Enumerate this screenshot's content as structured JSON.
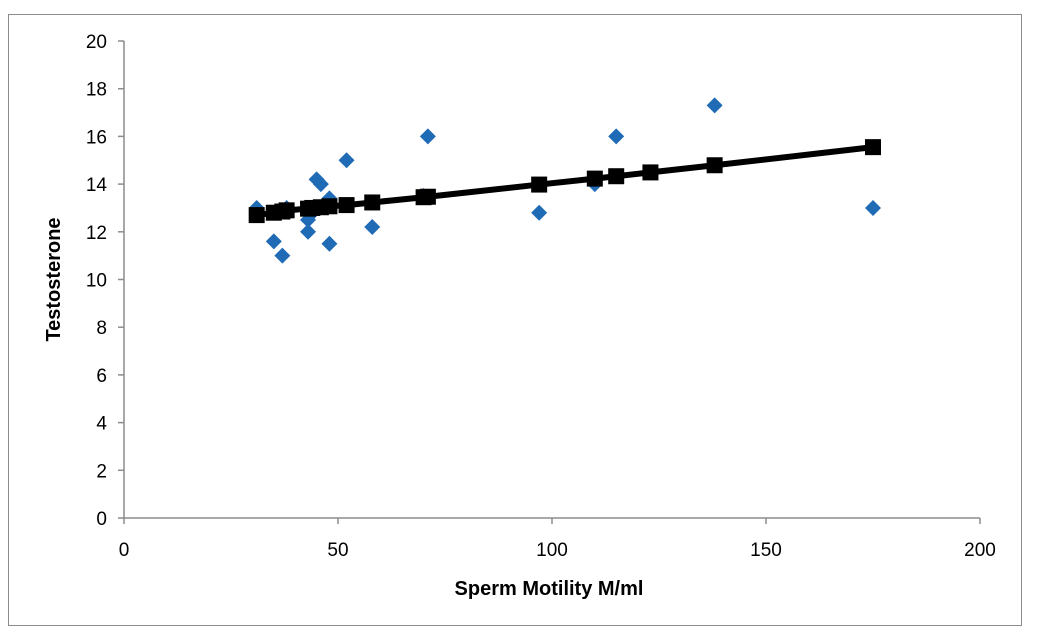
{
  "chart_data": {
    "type": "scatter",
    "title": "",
    "xlabel": "Sperm Motility M/ml",
    "ylabel": "Testosterone",
    "xlim": [
      0,
      200
    ],
    "ylim": [
      0,
      20
    ],
    "x_ticks": [
      0,
      50,
      100,
      150,
      200
    ],
    "y_ticks": [
      0,
      2,
      4,
      6,
      8,
      10,
      12,
      14,
      16,
      18,
      20
    ],
    "grid": false,
    "legend": "none",
    "series": [
      {
        "marker": "diamond",
        "color": "#1f6bb5",
        "points": [
          [
            31,
            13.0
          ],
          [
            35,
            11.6
          ],
          [
            37,
            11.0
          ],
          [
            38,
            13.0
          ],
          [
            43,
            12.0
          ],
          [
            43,
            12.5
          ],
          [
            44,
            12.8
          ],
          [
            45,
            14.2
          ],
          [
            46,
            14.0
          ],
          [
            48,
            11.5
          ],
          [
            48,
            13.4
          ],
          [
            52,
            15.0
          ],
          [
            58,
            12.2
          ],
          [
            70,
            13.5
          ],
          [
            71,
            16.0
          ],
          [
            97,
            12.8
          ],
          [
            110,
            14.0
          ],
          [
            115,
            16.0
          ],
          [
            123,
            14.5
          ],
          [
            138,
            17.3
          ],
          [
            175,
            13.0
          ]
        ]
      },
      {
        "marker": "square",
        "color": "#000000",
        "line": true,
        "points": [
          [
            31,
            12.7
          ],
          [
            35,
            12.8
          ],
          [
            37,
            12.85
          ],
          [
            38,
            12.9
          ],
          [
            43,
            12.97
          ],
          [
            44,
            13.0
          ],
          [
            46,
            13.03
          ],
          [
            48,
            13.07
          ],
          [
            52,
            13.12
          ],
          [
            58,
            13.23
          ],
          [
            70,
            13.45
          ],
          [
            71,
            13.47
          ],
          [
            97,
            13.98
          ],
          [
            110,
            14.23
          ],
          [
            115,
            14.33
          ],
          [
            123,
            14.49
          ],
          [
            138,
            14.79
          ],
          [
            175,
            15.55
          ]
        ]
      }
    ]
  }
}
